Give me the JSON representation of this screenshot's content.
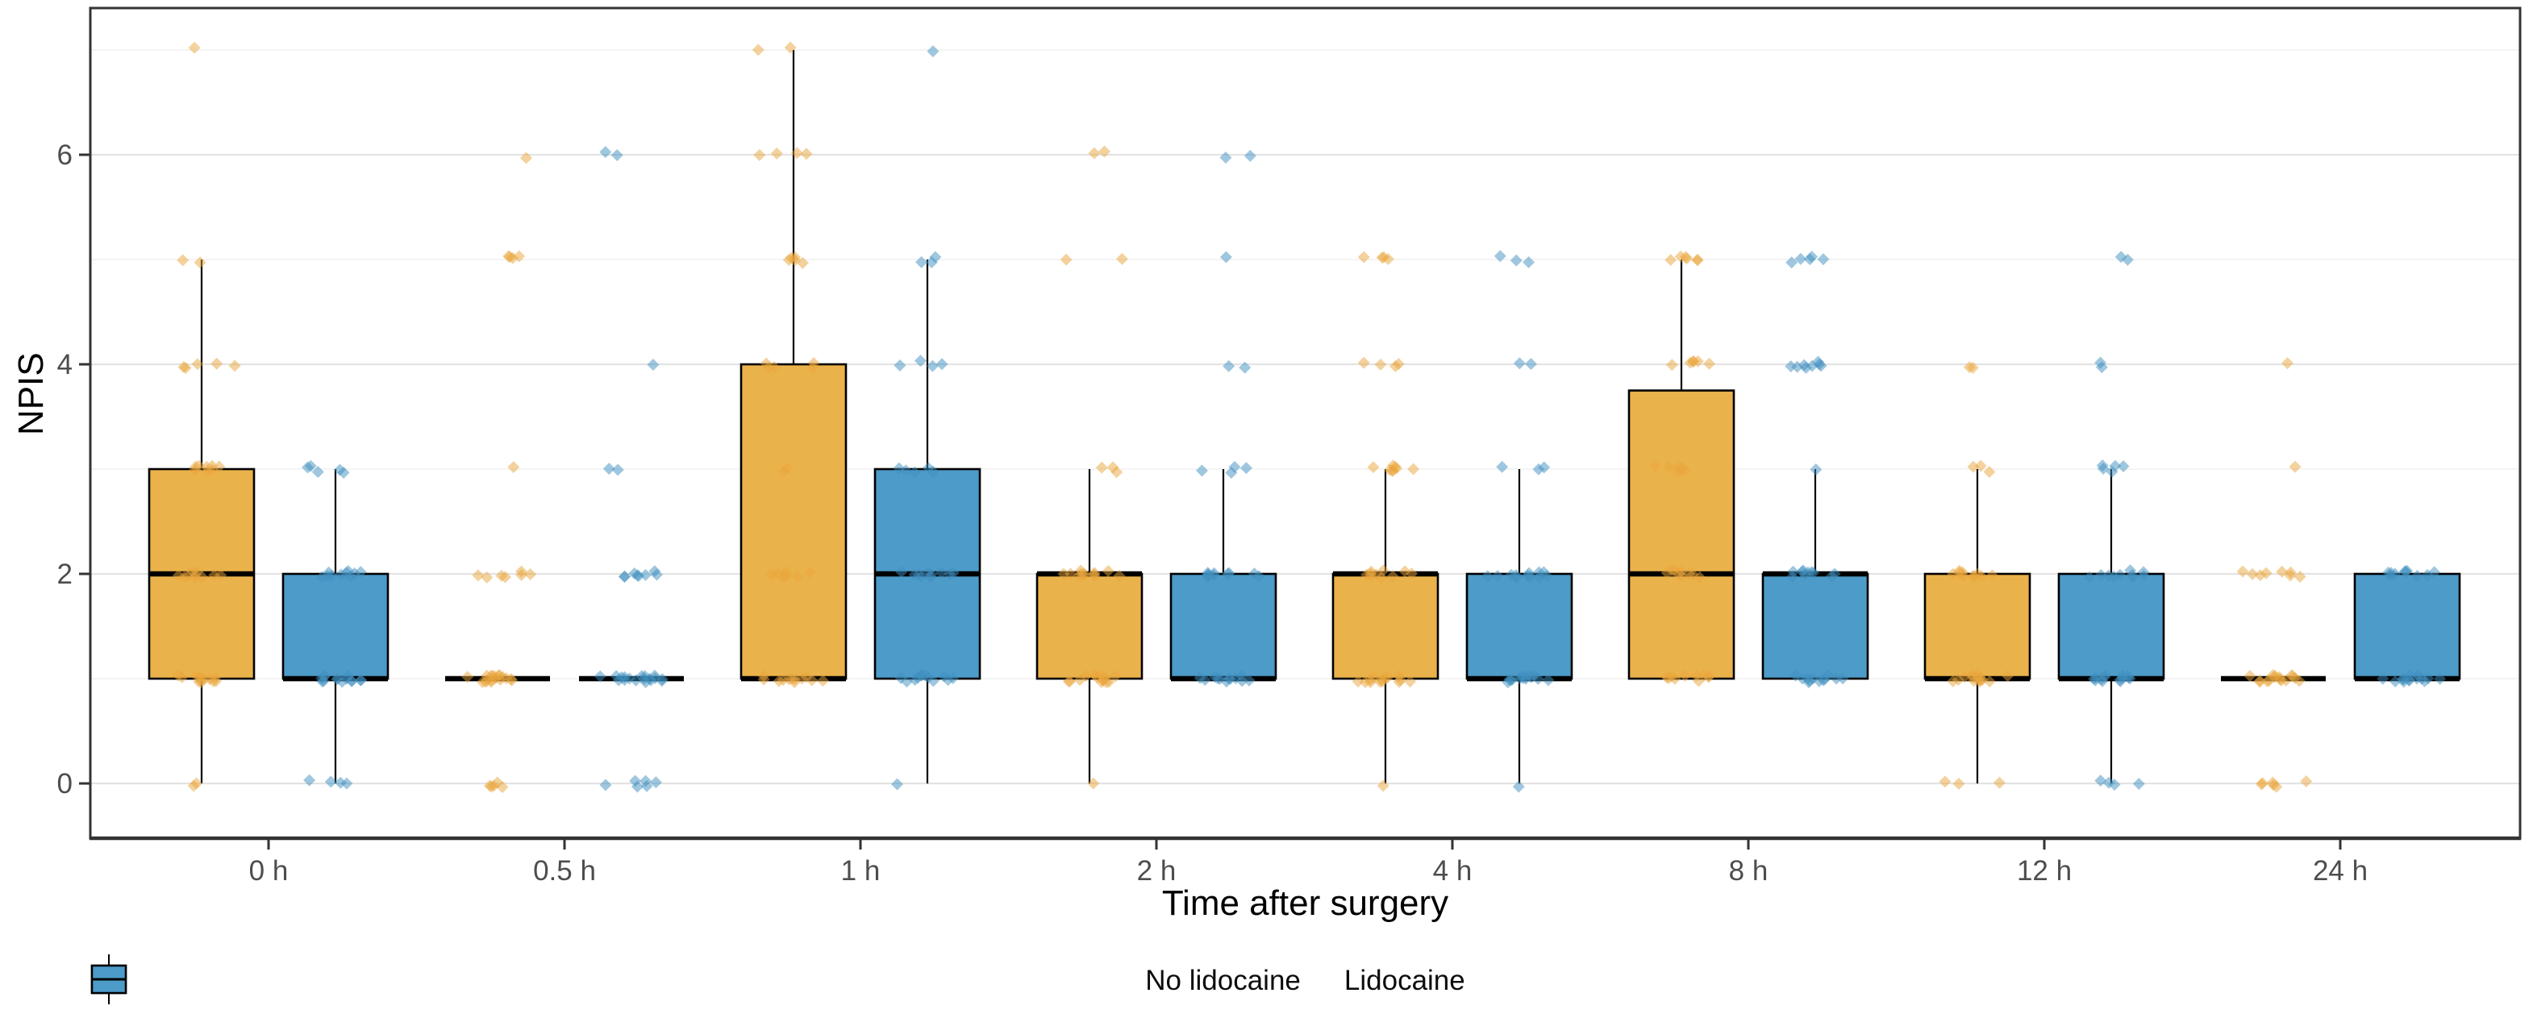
{
  "chart_data": {
    "type": "boxplot",
    "title": "",
    "xlabel": "Time after surgery",
    "ylabel": "NPIS",
    "categories": [
      "0 h",
      "0.5 h",
      "1 h",
      "2 h",
      "4 h",
      "8 h",
      "12 h",
      "24 h"
    ],
    "y_ticks": [
      0,
      2,
      4,
      6
    ],
    "y_minor_gridlines": [
      1,
      3,
      5,
      7
    ],
    "ylim": [
      -0.52,
      7.4
    ],
    "grid": true,
    "legend_position": "bottom",
    "series": [
      {
        "name": "No lidocaine",
        "fill": "#EAB24B",
        "point_color": "#E9A63C",
        "boxes": [
          {
            "low": 0,
            "q1": 1,
            "median": 2,
            "q3": 3,
            "high": 5
          },
          {
            "low": 1,
            "q1": 1,
            "median": 1,
            "q3": 1,
            "high": 1
          },
          {
            "low": 1,
            "q1": 1,
            "median": 1,
            "q3": 4,
            "high": 7
          },
          {
            "low": 0,
            "q1": 1,
            "median": 2,
            "q3": 2,
            "high": 3
          },
          {
            "low": 0,
            "q1": 1,
            "median": 2,
            "q3": 2,
            "high": 3
          },
          {
            "low": 1,
            "q1": 1,
            "median": 2,
            "q3": 3.75,
            "high": 5
          },
          {
            "low": 0,
            "q1": 1,
            "median": 1,
            "q3": 2,
            "high": 3
          },
          {
            "low": 1,
            "q1": 1,
            "median": 1,
            "q3": 1,
            "high": 1
          }
        ],
        "points": [
          [
            [
              0,
              2
            ],
            [
              1,
              12
            ],
            [
              2,
              10
            ],
            [
              3,
              8
            ],
            [
              4,
              5
            ],
            [
              5,
              2
            ],
            [
              7,
              1
            ]
          ],
          [
            [
              0,
              5
            ],
            [
              1,
              18
            ],
            [
              2,
              7
            ],
            [
              3,
              1
            ],
            [
              5,
              4
            ],
            [
              6,
              1
            ]
          ],
          [
            [
              1,
              12
            ],
            [
              2,
              7
            ],
            [
              3,
              2
            ],
            [
              4,
              5
            ],
            [
              5,
              5
            ],
            [
              6,
              4
            ],
            [
              7,
              2
            ]
          ],
          [
            [
              0,
              1
            ],
            [
              1,
              14
            ],
            [
              2,
              12
            ],
            [
              3,
              3
            ],
            [
              5,
              2
            ],
            [
              6,
              2
            ]
          ],
          [
            [
              0,
              1
            ],
            [
              1,
              14
            ],
            [
              2,
              10
            ],
            [
              3,
              8
            ],
            [
              4,
              4
            ],
            [
              5,
              4
            ]
          ],
          [
            [
              1,
              10
            ],
            [
              2,
              9
            ],
            [
              3,
              6
            ],
            [
              4,
              6
            ],
            [
              5,
              6
            ]
          ],
          [
            [
              0,
              3
            ],
            [
              1,
              14
            ],
            [
              2,
              10
            ],
            [
              3,
              3
            ],
            [
              4,
              2
            ]
          ],
          [
            [
              0,
              6
            ],
            [
              1,
              16
            ],
            [
              2,
              8
            ],
            [
              3,
              1
            ],
            [
              4,
              1
            ]
          ]
        ]
      },
      {
        "name": "Lidocaine",
        "fill": "#4C9BC9",
        "point_color": "#3F8FC0",
        "boxes": [
          {
            "low": 0,
            "q1": 1,
            "median": 1,
            "q3": 2,
            "high": 3
          },
          {
            "low": 1,
            "q1": 1,
            "median": 1,
            "q3": 1,
            "high": 1
          },
          {
            "low": 0,
            "q1": 1,
            "median": 2,
            "q3": 3,
            "high": 5
          },
          {
            "low": 1,
            "q1": 1,
            "median": 1,
            "q3": 2,
            "high": 3
          },
          {
            "low": 0,
            "q1": 1,
            "median": 1,
            "q3": 2,
            "high": 3
          },
          {
            "low": 1,
            "q1": 1,
            "median": 2,
            "q3": 2,
            "high": 3
          },
          {
            "low": 0,
            "q1": 1,
            "median": 1,
            "q3": 2,
            "high": 3
          },
          {
            "low": 1,
            "q1": 1,
            "median": 1,
            "q3": 2,
            "high": 2
          }
        ],
        "points": [
          [
            [
              0,
              4
            ],
            [
              1,
              14
            ],
            [
              2,
              10
            ],
            [
              3,
              5
            ]
          ],
          [
            [
              0,
              6
            ],
            [
              1,
              18
            ],
            [
              2,
              8
            ],
            [
              3,
              2
            ],
            [
              4,
              1
            ],
            [
              6,
              2
            ]
          ],
          [
            [
              0,
              1
            ],
            [
              1,
              12
            ],
            [
              2,
              10
            ],
            [
              3,
              5
            ],
            [
              4,
              4
            ],
            [
              5,
              3
            ],
            [
              7,
              1
            ]
          ],
          [
            [
              1,
              12
            ],
            [
              2,
              10
            ],
            [
              3,
              4
            ],
            [
              4,
              2
            ],
            [
              5,
              1
            ],
            [
              6,
              2
            ]
          ],
          [
            [
              0,
              1
            ],
            [
              1,
              14
            ],
            [
              2,
              12
            ],
            [
              3,
              3
            ],
            [
              4,
              2
            ],
            [
              5,
              3
            ]
          ],
          [
            [
              1,
              12
            ],
            [
              2,
              10
            ],
            [
              3,
              1
            ],
            [
              4,
              8
            ],
            [
              5,
              5
            ]
          ],
          [
            [
              0,
              4
            ],
            [
              1,
              14
            ],
            [
              2,
              10
            ],
            [
              3,
              5
            ],
            [
              4,
              2
            ],
            [
              5,
              2
            ]
          ],
          [
            [
              1,
              14
            ],
            [
              2,
              10
            ]
          ]
        ]
      }
    ]
  },
  "styles": {
    "panel_border": "#333333",
    "grid_major": "#E3E3E3",
    "grid_minor": "#F1F1F1",
    "tick_color": "#333333",
    "tick_label_color": "#4D4D4D",
    "axis_title_color": "#000000",
    "box_stroke": "#000000"
  }
}
